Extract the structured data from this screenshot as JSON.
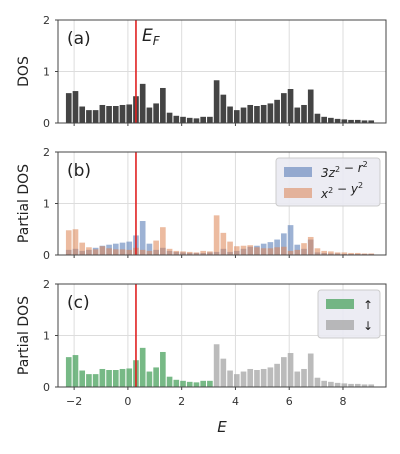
{
  "chart_data": [
    {
      "type": "bar",
      "panel_label": "(a)",
      "ylabel": "DOS",
      "ylim": [
        0,
        2
      ],
      "yticks": [
        "0",
        "1",
        "2"
      ],
      "xlim": [
        -2.6,
        9.6
      ],
      "grid": true,
      "fermi_level": 0.3,
      "fermi_label": "E_F",
      "bin_width": 0.25,
      "x": [
        -2.2,
        -1.95,
        -1.7,
        -1.45,
        -1.2,
        -0.95,
        -0.7,
        -0.45,
        -0.2,
        0.05,
        0.3,
        0.55,
        0.8,
        1.05,
        1.3,
        1.55,
        1.8,
        2.05,
        2.3,
        2.55,
        2.8,
        3.05,
        3.3,
        3.55,
        3.8,
        4.05,
        4.3,
        4.55,
        4.8,
        5.05,
        5.3,
        5.55,
        5.8,
        6.05,
        6.3,
        6.55,
        6.8,
        7.05,
        7.3,
        7.55,
        7.8,
        8.05,
        8.3,
        8.55,
        8.8,
        9.05
      ],
      "series": [
        {
          "color": "#444444",
          "values": [
            0.58,
            0.62,
            0.32,
            0.25,
            0.25,
            0.35,
            0.33,
            0.33,
            0.35,
            0.36,
            0.52,
            0.76,
            0.3,
            0.38,
            0.68,
            0.2,
            0.14,
            0.12,
            0.1,
            0.09,
            0.12,
            0.12,
            0.83,
            0.55,
            0.32,
            0.25,
            0.3,
            0.35,
            0.33,
            0.35,
            0.38,
            0.45,
            0.58,
            0.66,
            0.3,
            0.35,
            0.65,
            0.18,
            0.12,
            0.1,
            0.08,
            0.07,
            0.06,
            0.06,
            0.05,
            0.05
          ]
        }
      ]
    },
    {
      "type": "bar",
      "panel_label": "(b)",
      "ylabel": "Partial DOS",
      "ylim": [
        0,
        2
      ],
      "yticks": [
        "0",
        "1",
        "2"
      ],
      "xlim": [
        -2.6,
        9.6
      ],
      "grid": true,
      "fermi_level": 0.3,
      "legend_position": "top-right",
      "bin_width": 0.25,
      "x": [
        -2.2,
        -1.95,
        -1.7,
        -1.45,
        -1.2,
        -0.95,
        -0.7,
        -0.45,
        -0.2,
        0.05,
        0.3,
        0.55,
        0.8,
        1.05,
        1.3,
        1.55,
        1.8,
        2.05,
        2.3,
        2.55,
        2.8,
        3.05,
        3.3,
        3.55,
        3.8,
        4.05,
        4.3,
        4.55,
        4.8,
        5.05,
        5.3,
        5.55,
        5.8,
        6.05,
        6.3,
        6.55,
        6.8,
        7.05,
        7.3,
        7.55,
        7.8,
        8.05,
        8.3,
        8.55,
        8.8,
        9.05
      ],
      "series": [
        {
          "name": "3z^2 - r^2",
          "color": "#4c72b0",
          "opacity": 0.55,
          "values": [
            0.1,
            0.12,
            0.08,
            0.1,
            0.14,
            0.18,
            0.2,
            0.22,
            0.24,
            0.26,
            0.38,
            0.66,
            0.22,
            0.1,
            0.14,
            0.08,
            0.06,
            0.05,
            0.04,
            0.04,
            0.04,
            0.05,
            0.06,
            0.12,
            0.06,
            0.08,
            0.12,
            0.16,
            0.18,
            0.22,
            0.25,
            0.3,
            0.42,
            0.58,
            0.2,
            0.12,
            0.3,
            0.05,
            0.04,
            0.03,
            0.03,
            0.02,
            0.02,
            0.02,
            0.02,
            0.02
          ]
        },
        {
          "name": "x^2 - y^2",
          "color": "#dd8452",
          "opacity": 0.55,
          "values": [
            0.48,
            0.5,
            0.24,
            0.15,
            0.11,
            0.17,
            0.13,
            0.11,
            0.11,
            0.1,
            0.14,
            0.1,
            0.08,
            0.28,
            0.54,
            0.12,
            0.08,
            0.07,
            0.06,
            0.05,
            0.08,
            0.07,
            0.77,
            0.43,
            0.26,
            0.17,
            0.18,
            0.19,
            0.15,
            0.13,
            0.13,
            0.15,
            0.16,
            0.08,
            0.1,
            0.23,
            0.35,
            0.13,
            0.08,
            0.07,
            0.05,
            0.05,
            0.04,
            0.04,
            0.03,
            0.03
          ]
        }
      ]
    },
    {
      "type": "bar",
      "panel_label": "(c)",
      "ylabel": "Partial DOS",
      "ylim": [
        0,
        2
      ],
      "yticks": [
        "0",
        "1",
        "2"
      ],
      "xlabel": "E",
      "xlim": [
        -2.6,
        9.6
      ],
      "xticks": [
        "−2",
        "0",
        "2",
        "4",
        "6",
        "8"
      ],
      "xtick_values": [
        -2,
        0,
        2,
        4,
        6,
        8
      ],
      "grid": true,
      "fermi_level": 0.3,
      "legend_position": "top-right",
      "bin_width": 0.25,
      "x": [
        -2.2,
        -1.95,
        -1.7,
        -1.45,
        -1.2,
        -0.95,
        -0.7,
        -0.45,
        -0.2,
        0.05,
        0.3,
        0.55,
        0.8,
        1.05,
        1.3,
        1.55,
        1.8,
        2.05,
        2.3,
        2.55,
        2.8,
        3.05,
        3.3,
        3.55,
        3.8,
        4.05,
        4.3,
        4.55,
        4.8,
        5.05,
        5.3,
        5.55,
        5.8,
        6.05,
        6.3,
        6.55,
        6.8,
        7.05,
        7.3,
        7.55,
        7.8,
        8.05,
        8.3,
        8.55,
        8.8,
        9.05
      ],
      "series": [
        {
          "name": "↑",
          "color": "#55a868",
          "opacity": 0.8,
          "values": [
            0.58,
            0.62,
            0.32,
            0.25,
            0.25,
            0.35,
            0.33,
            0.33,
            0.35,
            0.36,
            0.52,
            0.76,
            0.3,
            0.38,
            0.68,
            0.2,
            0.14,
            0.12,
            0.1,
            0.09,
            0.12,
            0.12,
            0,
            0,
            0,
            0,
            0,
            0,
            0,
            0,
            0,
            0,
            0,
            0,
            0,
            0,
            0,
            0,
            0,
            0,
            0,
            0,
            0,
            0,
            0,
            0
          ]
        },
        {
          "name": "↓",
          "color": "#aaaaaa",
          "opacity": 0.8,
          "values": [
            0,
            0,
            0,
            0,
            0,
            0,
            0,
            0,
            0,
            0,
            0,
            0,
            0,
            0,
            0,
            0,
            0,
            0,
            0,
            0,
            0,
            0,
            0.83,
            0.55,
            0.32,
            0.25,
            0.3,
            0.35,
            0.33,
            0.35,
            0.38,
            0.45,
            0.58,
            0.66,
            0.3,
            0.35,
            0.65,
            0.18,
            0.12,
            0.1,
            0.08,
            0.07,
            0.06,
            0.06,
            0.05,
            0.05
          ]
        }
      ]
    }
  ]
}
